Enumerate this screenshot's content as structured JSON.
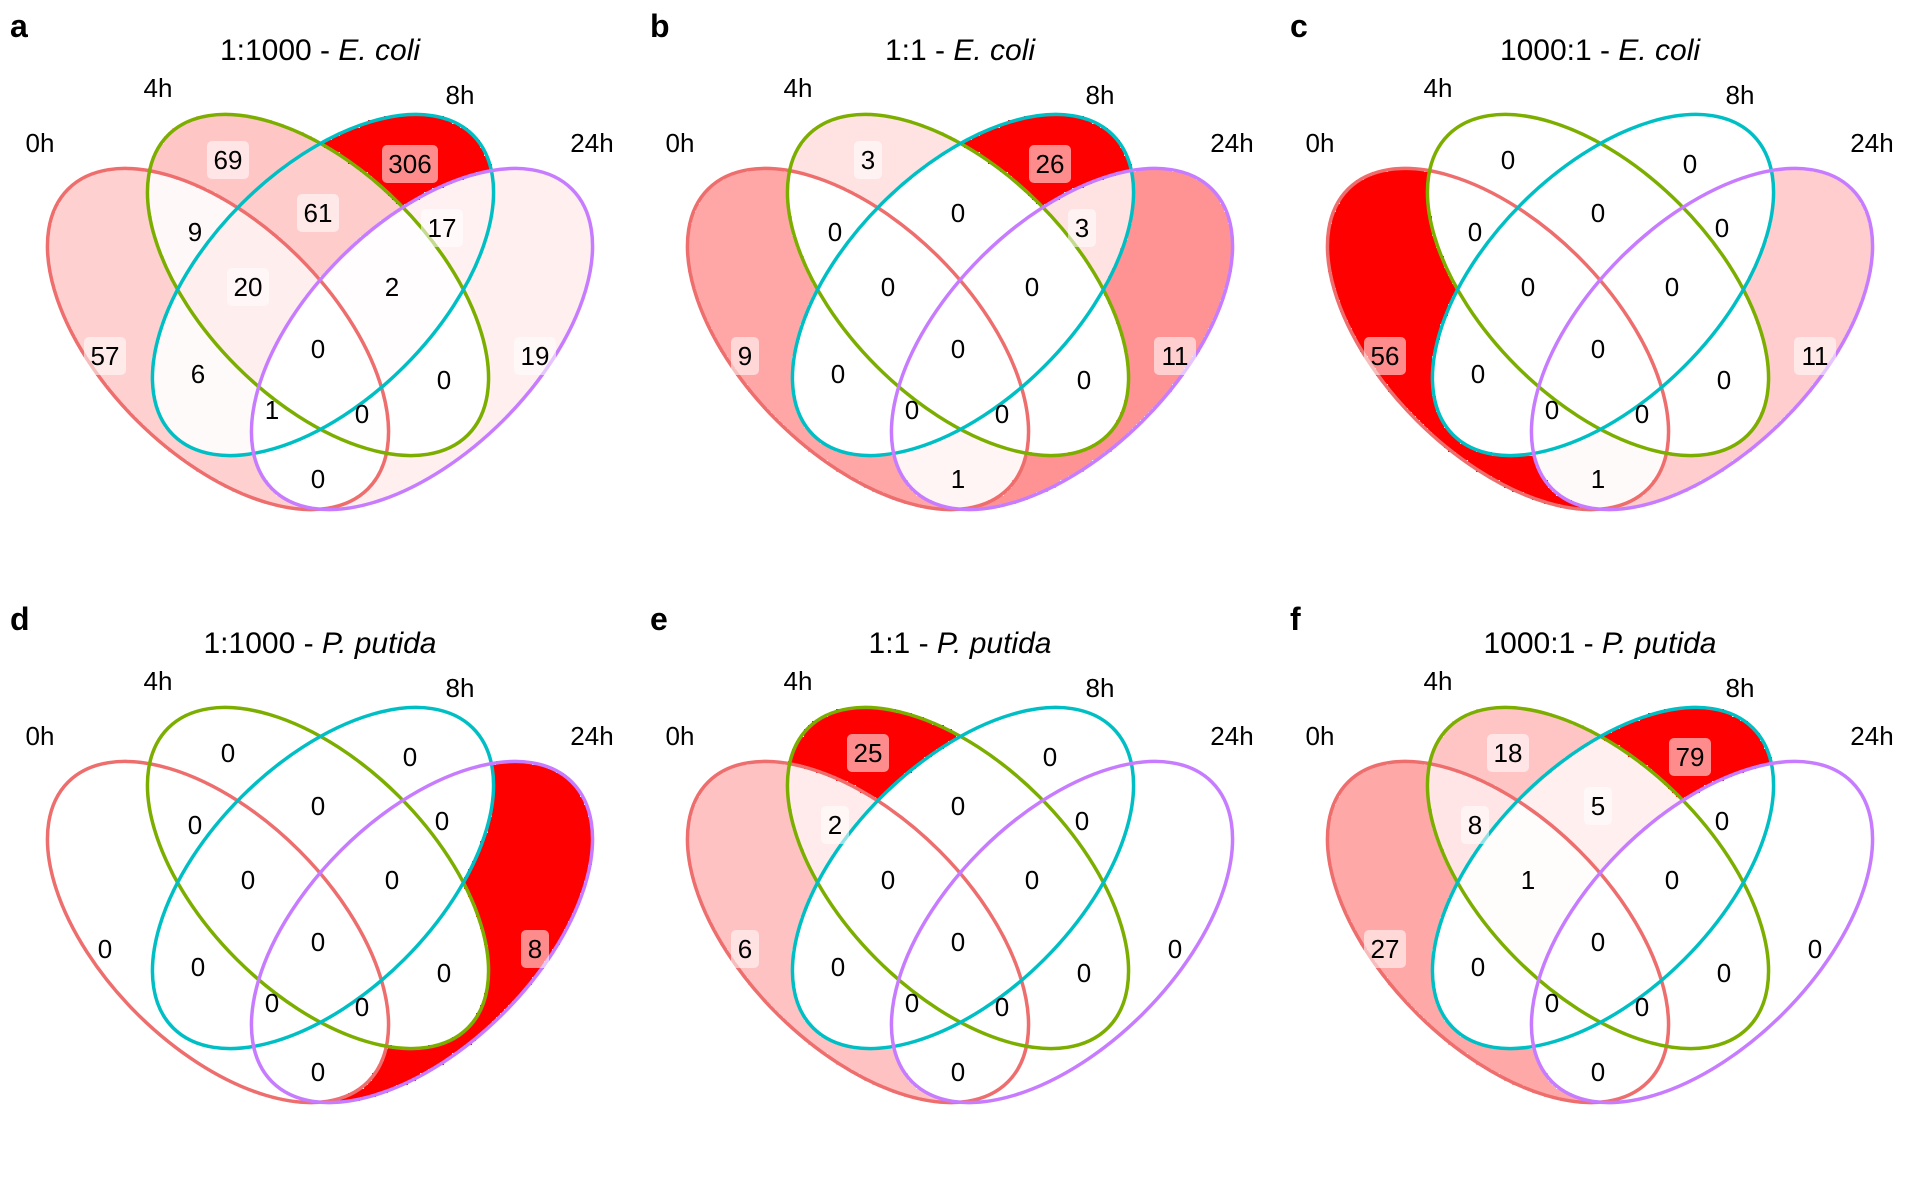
{
  "figure": {
    "set_labels": [
      "0h",
      "4h",
      "8h",
      "24h"
    ],
    "set_colors": [
      "#ee6d6d",
      "#7cae00",
      "#00bfc4",
      "#c77cff"
    ],
    "fill_scale": {
      "low": "#ffffff",
      "high": "#ff0000"
    },
    "region_keys": [
      "1000",
      "0100",
      "0010",
      "0001",
      "1100",
      "1010",
      "1001",
      "0110",
      "0101",
      "0011",
      "1110",
      "1101",
      "1011",
      "0111",
      "1111"
    ],
    "panels": [
      {
        "letter": "a",
        "ratio": "1:1000 - ",
        "organism": "E. coli",
        "counts": {
          "1000": 57,
          "0100": 69,
          "0010": 306,
          "0001": 19,
          "1100": 9,
          "1010": 6,
          "1001": 0,
          "0110": 61,
          "0101": 0,
          "0011": 17,
          "1110": 20,
          "1101": 1,
          "1011": 0,
          "0111": 2,
          "1111": 0
        }
      },
      {
        "letter": "b",
        "ratio": "1:1 - ",
        "organism": "E. coli",
        "counts": {
          "1000": 9,
          "0100": 3,
          "0010": 26,
          "0001": 11,
          "1100": 0,
          "1010": 0,
          "1001": 1,
          "0110": 0,
          "0101": 0,
          "0011": 3,
          "1110": 0,
          "1101": 0,
          "1011": 0,
          "0111": 0,
          "1111": 0
        }
      },
      {
        "letter": "c",
        "ratio": "1000:1 - ",
        "organism": "E. coli",
        "counts": {
          "1000": 56,
          "0100": 0,
          "0010": 0,
          "0001": 11,
          "1100": 0,
          "1010": 0,
          "1001": 1,
          "0110": 0,
          "0101": 0,
          "0011": 0,
          "1110": 0,
          "1101": 0,
          "1011": 0,
          "0111": 0,
          "1111": 0
        }
      },
      {
        "letter": "d",
        "ratio": "1:1000 - ",
        "organism": "P. putida",
        "counts": {
          "1000": 0,
          "0100": 0,
          "0010": 0,
          "0001": 8,
          "1100": 0,
          "1010": 0,
          "1001": 0,
          "0110": 0,
          "0101": 0,
          "0011": 0,
          "1110": 0,
          "1101": 0,
          "1011": 0,
          "0111": 0,
          "1111": 0
        }
      },
      {
        "letter": "e",
        "ratio": "1:1 - ",
        "organism": "P. putida",
        "counts": {
          "1000": 6,
          "0100": 25,
          "0010": 0,
          "0001": 0,
          "1100": 2,
          "1010": 0,
          "1001": 0,
          "0110": 0,
          "0101": 0,
          "0011": 0,
          "1110": 0,
          "1101": 0,
          "1011": 0,
          "0111": 0,
          "1111": 0
        }
      },
      {
        "letter": "f",
        "ratio": "1000:1 - ",
        "organism": "P. putida",
        "counts": {
          "1000": 27,
          "0100": 18,
          "0010": 79,
          "0001": 0,
          "1100": 8,
          "1010": 0,
          "1001": 0,
          "0110": 5,
          "0101": 0,
          "0011": 0,
          "1110": 1,
          "1101": 0,
          "1011": 0,
          "0111": 0,
          "1111": 0
        }
      }
    ]
  }
}
